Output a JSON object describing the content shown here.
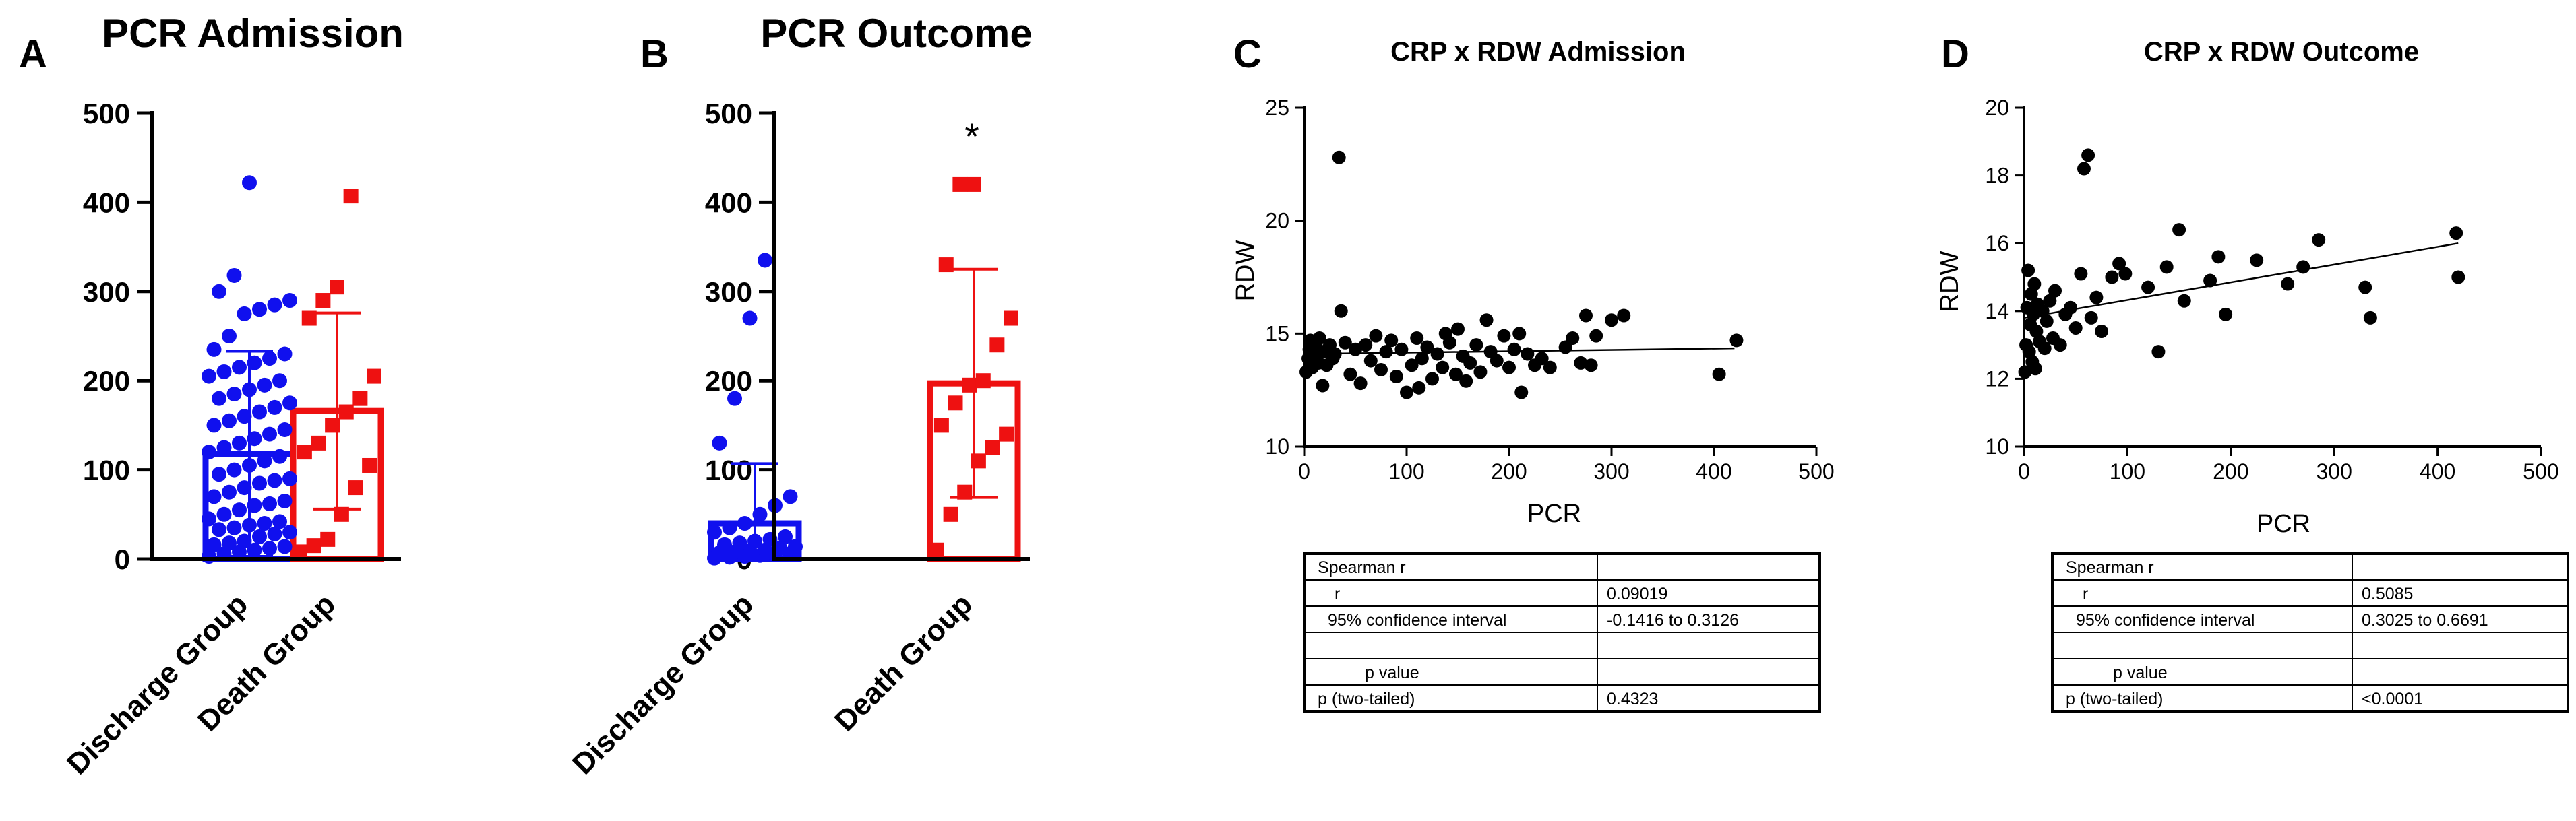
{
  "colors": {
    "discharge": "#1010ee",
    "death": "#ee1111",
    "black": "#000000"
  },
  "panel_letters": [
    "A",
    "B",
    "C",
    "D"
  ],
  "chart_data": [
    {
      "type": "bar",
      "panel": "A",
      "title": "PCR Admission",
      "categories": [
        "Discharge Group",
        "Death Group"
      ],
      "values": [
        118,
        166
      ],
      "error_sd": [
        115,
        110
      ],
      "ylim": [
        0,
        500
      ],
      "yticks": [
        "0",
        "100",
        "200",
        "300",
        "400",
        "500"
      ],
      "annotation": "",
      "points": [
        [
          3,
          6,
          8,
          10,
          12,
          14,
          16,
          18,
          20,
          25,
          28,
          30,
          33,
          35,
          38,
          40,
          42,
          45,
          50,
          55,
          60,
          62,
          65,
          70,
          75,
          80,
          85,
          88,
          90,
          95,
          100,
          105,
          110,
          115,
          120,
          125,
          130,
          135,
          140,
          145,
          150,
          155,
          160,
          165,
          170,
          175,
          180,
          185,
          190,
          195,
          200,
          205,
          210,
          215,
          220,
          225,
          230,
          235,
          250,
          275,
          280,
          285,
          290,
          300,
          318,
          422
        ],
        [
          8,
          15,
          22,
          50,
          80,
          105,
          120,
          130,
          150,
          165,
          180,
          205,
          270,
          290,
          305,
          407
        ]
      ]
    },
    {
      "type": "bar",
      "panel": "B",
      "title": "PCR Outcome",
      "categories": [
        "Discharge Group",
        "Death Group"
      ],
      "values": [
        40,
        197
      ],
      "error_sd": [
        67,
        128
      ],
      "ylim": [
        0,
        500
      ],
      "yticks": [
        "0",
        "100",
        "200",
        "300",
        "400",
        "500"
      ],
      "annotation": "*",
      "points": [
        [
          1,
          2,
          3,
          4,
          5,
          6,
          7,
          8,
          9,
          10,
          12,
          14,
          16,
          18,
          20,
          22,
          25,
          30,
          35,
          40,
          50,
          60,
          70,
          130,
          180,
          270,
          335
        ],
        [
          10,
          50,
          75,
          110,
          125,
          140,
          150,
          175,
          195,
          200,
          240,
          270,
          330,
          420,
          420
        ]
      ]
    },
    {
      "type": "scatter",
      "panel": "C",
      "title": "CRP x RDW Admission",
      "xlabel": "PCR",
      "ylabel": "RDW",
      "xlim": [
        0,
        500
      ],
      "ylim": [
        10,
        25
      ],
      "xticks": [
        "0",
        "100",
        "200",
        "300",
        "400",
        "500"
      ],
      "yticks": [
        "10",
        "15",
        "20",
        "25"
      ],
      "trend": [
        [
          0,
          14.1
        ],
        [
          420,
          14.35
        ]
      ],
      "points": [
        [
          2,
          13.3
        ],
        [
          4,
          13.9
        ],
        [
          5,
          14.3
        ],
        [
          6,
          14.7
        ],
        [
          8,
          13.5
        ],
        [
          10,
          14.0
        ],
        [
          12,
          14.4
        ],
        [
          14,
          13.7
        ],
        [
          15,
          14.8
        ],
        [
          18,
          12.7
        ],
        [
          20,
          14.2
        ],
        [
          22,
          13.6
        ],
        [
          25,
          14.5
        ],
        [
          28,
          13.9
        ],
        [
          30,
          14.1
        ],
        [
          34,
          22.8
        ],
        [
          36,
          16.0
        ],
        [
          40,
          14.6
        ],
        [
          45,
          13.2
        ],
        [
          50,
          14.3
        ],
        [
          55,
          12.8
        ],
        [
          60,
          14.5
        ],
        [
          65,
          13.8
        ],
        [
          70,
          14.9
        ],
        [
          75,
          13.4
        ],
        [
          80,
          14.2
        ],
        [
          85,
          14.7
        ],
        [
          90,
          13.1
        ],
        [
          95,
          14.3
        ],
        [
          100,
          12.4
        ],
        [
          105,
          13.6
        ],
        [
          110,
          14.8
        ],
        [
          112,
          12.6
        ],
        [
          115,
          13.9
        ],
        [
          120,
          14.4
        ],
        [
          125,
          13.0
        ],
        [
          130,
          14.1
        ],
        [
          135,
          13.5
        ],
        [
          138,
          15.0
        ],
        [
          142,
          14.6
        ],
        [
          148,
          13.2
        ],
        [
          150,
          15.2
        ],
        [
          155,
          14.0
        ],
        [
          158,
          12.9
        ],
        [
          162,
          13.7
        ],
        [
          168,
          14.5
        ],
        [
          172,
          13.3
        ],
        [
          178,
          15.6
        ],
        [
          182,
          14.2
        ],
        [
          188,
          13.8
        ],
        [
          195,
          14.9
        ],
        [
          200,
          13.5
        ],
        [
          205,
          14.3
        ],
        [
          210,
          15.0
        ],
        [
          212,
          12.4
        ],
        [
          218,
          14.1
        ],
        [
          225,
          13.6
        ],
        [
          232,
          13.9
        ],
        [
          240,
          13.5
        ],
        [
          255,
          14.4
        ],
        [
          262,
          14.8
        ],
        [
          270,
          13.7
        ],
        [
          275,
          15.8
        ],
        [
          280,
          13.6
        ],
        [
          285,
          14.9
        ],
        [
          300,
          15.6
        ],
        [
          312,
          15.8
        ],
        [
          405,
          13.2
        ],
        [
          422,
          14.7
        ]
      ]
    },
    {
      "type": "scatter",
      "panel": "D",
      "title": "CRP x RDW Outcome",
      "xlabel": "PCR",
      "ylabel": "RDW",
      "xlim": [
        0,
        500
      ],
      "ylim": [
        10,
        20
      ],
      "xticks": [
        "0",
        "100",
        "200",
        "300",
        "400",
        "500"
      ],
      "yticks": [
        "10",
        "12",
        "14",
        "16",
        "18",
        "20"
      ],
      "trend": [
        [
          0,
          13.8
        ],
        [
          420,
          16.0
        ]
      ],
      "points": [
        [
          1,
          12.2
        ],
        [
          2,
          13.0
        ],
        [
          3,
          14.1
        ],
        [
          4,
          15.2
        ],
        [
          5,
          12.8
        ],
        [
          6,
          13.6
        ],
        [
          7,
          14.5
        ],
        [
          8,
          12.5
        ],
        [
          9,
          13.9
        ],
        [
          10,
          14.8
        ],
        [
          11,
          12.3
        ],
        [
          12,
          13.4
        ],
        [
          13,
          14.2
        ],
        [
          15,
          13.1
        ],
        [
          18,
          14.0
        ],
        [
          20,
          12.9
        ],
        [
          22,
          13.7
        ],
        [
          25,
          14.3
        ],
        [
          28,
          13.2
        ],
        [
          30,
          14.6
        ],
        [
          35,
          13.0
        ],
        [
          40,
          13.9
        ],
        [
          45,
          14.1
        ],
        [
          50,
          13.5
        ],
        [
          55,
          15.1
        ],
        [
          58,
          18.2
        ],
        [
          62,
          18.6
        ],
        [
          65,
          13.8
        ],
        [
          70,
          14.4
        ],
        [
          75,
          13.4
        ],
        [
          85,
          15.0
        ],
        [
          92,
          15.4
        ],
        [
          98,
          15.1
        ],
        [
          120,
          14.7
        ],
        [
          130,
          12.8
        ],
        [
          138,
          15.3
        ],
        [
          150,
          16.4
        ],
        [
          155,
          14.3
        ],
        [
          180,
          14.9
        ],
        [
          188,
          15.6
        ],
        [
          195,
          13.9
        ],
        [
          225,
          15.5
        ],
        [
          255,
          14.8
        ],
        [
          270,
          15.3
        ],
        [
          285,
          16.1
        ],
        [
          330,
          14.7
        ],
        [
          335,
          13.8
        ],
        [
          418,
          16.3
        ],
        [
          420,
          15.0
        ]
      ]
    }
  ],
  "tables": [
    {
      "panel": "C",
      "rows": [
        [
          "Spearman r",
          ""
        ],
        [
          "r",
          "0.09019"
        ],
        [
          "95% confidence interval",
          "-0.1416 to 0.3126"
        ],
        [
          "",
          ""
        ],
        [
          "p value",
          ""
        ],
        [
          "p (two-tailed)",
          "0.4323"
        ]
      ]
    },
    {
      "panel": "D",
      "rows": [
        [
          "Spearman r",
          ""
        ],
        [
          "r",
          "0.5085"
        ],
        [
          "95% confidence interval",
          "0.3025 to 0.6691"
        ],
        [
          "",
          ""
        ],
        [
          "p value",
          ""
        ],
        [
          "p (two-tailed)",
          "<0.0001"
        ]
      ]
    }
  ]
}
